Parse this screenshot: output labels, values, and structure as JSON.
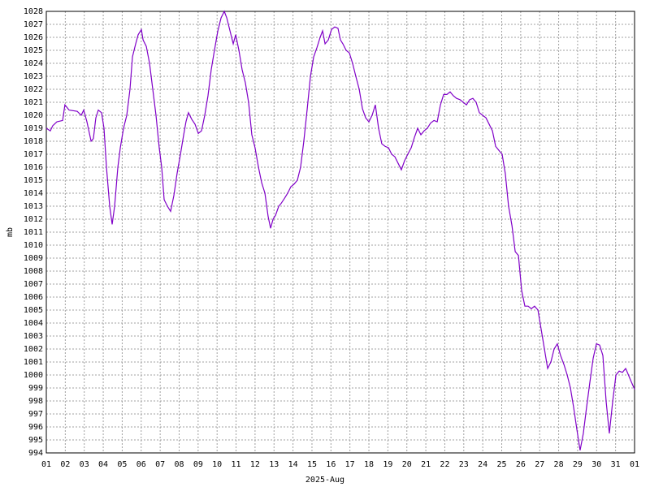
{
  "chart_data": {
    "type": "line",
    "xlabel": "2025-Aug",
    "ylabel": "mb",
    "color": "#8000c8",
    "grid": true,
    "xlim": [
      1,
      32
    ],
    "ylim": [
      994,
      1028
    ],
    "xticks": [
      {
        "value": 1,
        "label": "01"
      },
      {
        "value": 2,
        "label": "02"
      },
      {
        "value": 3,
        "label": "03"
      },
      {
        "value": 4,
        "label": "04"
      },
      {
        "value": 5,
        "label": "05"
      },
      {
        "value": 6,
        "label": "06"
      },
      {
        "value": 7,
        "label": "07"
      },
      {
        "value": 8,
        "label": "08"
      },
      {
        "value": 9,
        "label": "09"
      },
      {
        "value": 10,
        "label": "10"
      },
      {
        "value": 11,
        "label": "11"
      },
      {
        "value": 12,
        "label": "12"
      },
      {
        "value": 13,
        "label": "13"
      },
      {
        "value": 14,
        "label": "14"
      },
      {
        "value": 15,
        "label": "15"
      },
      {
        "value": 16,
        "label": "16"
      },
      {
        "value": 17,
        "label": "17"
      },
      {
        "value": 18,
        "label": "18"
      },
      {
        "value": 19,
        "label": "19"
      },
      {
        "value": 20,
        "label": "20"
      },
      {
        "value": 21,
        "label": "21"
      },
      {
        "value": 22,
        "label": "22"
      },
      {
        "value": 23,
        "label": "23"
      },
      {
        "value": 24,
        "label": "24"
      },
      {
        "value": 25,
        "label": "25"
      },
      {
        "value": 26,
        "label": "26"
      },
      {
        "value": 27,
        "label": "27"
      },
      {
        "value": 28,
        "label": "28"
      },
      {
        "value": 29,
        "label": "29"
      },
      {
        "value": 30,
        "label": "30"
      },
      {
        "value": 31,
        "label": "31"
      },
      {
        "value": 32,
        "label": "01"
      }
    ],
    "yticks": [
      994,
      995,
      996,
      997,
      998,
      999,
      1000,
      1001,
      1002,
      1003,
      1004,
      1005,
      1006,
      1007,
      1008,
      1009,
      1010,
      1011,
      1012,
      1013,
      1014,
      1015,
      1016,
      1017,
      1018,
      1019,
      1020,
      1021,
      1022,
      1023,
      1024,
      1025,
      1026,
      1027,
      1028
    ],
    "x": [
      1.0,
      1.21,
      1.34,
      1.56,
      1.86,
      1.98,
      2.2,
      2.63,
      2.84,
      2.97,
      3.14,
      3.36,
      3.48,
      3.61,
      3.74,
      3.91,
      4.04,
      4.17,
      4.34,
      4.47,
      4.6,
      4.77,
      4.9,
      5.07,
      5.24,
      5.41,
      5.54,
      5.71,
      5.84,
      6.01,
      6.1,
      6.27,
      6.44,
      6.61,
      6.78,
      6.95,
      7.08,
      7.21,
      7.38,
      7.55,
      7.72,
      7.89,
      8.07,
      8.24,
      8.36,
      8.49,
      8.66,
      8.84,
      9.01,
      9.18,
      9.35,
      9.52,
      9.69,
      9.86,
      10.04,
      10.21,
      10.38,
      10.51,
      10.68,
      10.85,
      10.98,
      11.15,
      11.32,
      11.49,
      11.66,
      11.83,
      12.0,
      12.18,
      12.35,
      12.52,
      12.69,
      12.82,
      12.95,
      13.08,
      13.25,
      13.37,
      13.55,
      13.72,
      13.89,
      14.06,
      14.23,
      14.4,
      14.57,
      14.75,
      14.92,
      15.09,
      15.26,
      15.43,
      15.56,
      15.69,
      15.86,
      16.03,
      16.2,
      16.37,
      16.5,
      16.63,
      16.8,
      16.97,
      17.14,
      17.31,
      17.49,
      17.66,
      17.83,
      18.0,
      18.17,
      18.34,
      18.51,
      18.68,
      18.86,
      19.03,
      19.2,
      19.37,
      19.54,
      19.71,
      19.88,
      20.05,
      20.23,
      20.4,
      20.57,
      20.74,
      20.91,
      21.08,
      21.25,
      21.43,
      21.6,
      21.77,
      21.94,
      22.11,
      22.28,
      22.45,
      22.62,
      22.8,
      22.97,
      23.14,
      23.31,
      23.48,
      23.65,
      23.82,
      23.99,
      24.17,
      24.34,
      24.51,
      24.68,
      24.85,
      25.02,
      25.19,
      25.36,
      25.54,
      25.71,
      25.88,
      26.05,
      26.22,
      26.39,
      26.56,
      26.73,
      26.91,
      27.08,
      27.25,
      27.42,
      27.59,
      27.76,
      27.93,
      28.1,
      28.28,
      28.45,
      28.62,
      28.79,
      28.96,
      29.13,
      29.3,
      29.47,
      29.65,
      29.82,
      29.99,
      30.16,
      30.33,
      30.5,
      30.67,
      30.85,
      31.02,
      31.19,
      31.36,
      31.53,
      31.62,
      31.79,
      32.0
    ],
    "values": [
      1019,
      1018.8,
      1019.2,
      1019.5,
      1019.6,
      1020.8,
      1020.4,
      1020.3,
      1020.0,
      1020.4,
      1019.5,
      1018.0,
      1018.2,
      1019.8,
      1020.4,
      1020.2,
      1019,
      1016,
      1013,
      1011.6,
      1013,
      1016,
      1017.5,
      1019,
      1020,
      1022,
      1024.5,
      1025.5,
      1026.2,
      1026.6,
      1025.8,
      1025.3,
      1024,
      1022,
      1020,
      1017.5,
      1016,
      1013.5,
      1013,
      1012.6,
      1013.8,
      1015.5,
      1017,
      1018.5,
      1019.5,
      1020.2,
      1019.7,
      1019.3,
      1018.6,
      1018.8,
      1020,
      1021.5,
      1023.5,
      1025,
      1026.5,
      1027.5,
      1028,
      1027.5,
      1026.5,
      1025.5,
      1026.2,
      1025,
      1023.5,
      1022.5,
      1021,
      1018.5,
      1017.5,
      1016,
      1014.8,
      1014,
      1012.2,
      1011.3,
      1012,
      1012.3,
      1013,
      1013.2,
      1013.6,
      1014,
      1014.5,
      1014.7,
      1015,
      1016,
      1018,
      1020.5,
      1023,
      1024.5,
      1025.2,
      1026,
      1026.5,
      1025.5,
      1025.8,
      1026.6,
      1026.8,
      1026.7,
      1025.8,
      1025.5,
      1025,
      1024.8,
      1024,
      1023,
      1022,
      1020.5,
      1019.8,
      1019.5,
      1020,
      1020.8,
      1019,
      1017.8,
      1017.6,
      1017.5,
      1017,
      1016.8,
      1016.3,
      1015.8,
      1016.5,
      1017,
      1017.5,
      1018.3,
      1019,
      1018.5,
      1018.8,
      1019,
      1019.4,
      1019.6,
      1019.5,
      1020.8,
      1021.6,
      1021.6,
      1021.8,
      1021.5,
      1021.3,
      1021.2,
      1021,
      1020.8,
      1021.2,
      1021.3,
      1021,
      1020.2,
      1020,
      1019.8,
      1019.3,
      1018.8,
      1017.6,
      1017.3,
      1017,
      1015.5,
      1013,
      1011.5,
      1009.5,
      1009.2,
      1006.5,
      1005.3,
      1005.3,
      1005.1,
      1005.3,
      1005,
      1003.5,
      1002,
      1000.5,
      1001,
      1002,
      1002.4,
      1001.5,
      1000.8,
      1000,
      999,
      997.5,
      995.8,
      994.2,
      995.5,
      997.5,
      999.5,
      1001.3,
      1002.4,
      1002.3,
      1001.5,
      998,
      995.5,
      998,
      1000,
      1000.3,
      1000.2,
      1000.5,
      1000.2,
      999.6,
      998.9
    ]
  }
}
